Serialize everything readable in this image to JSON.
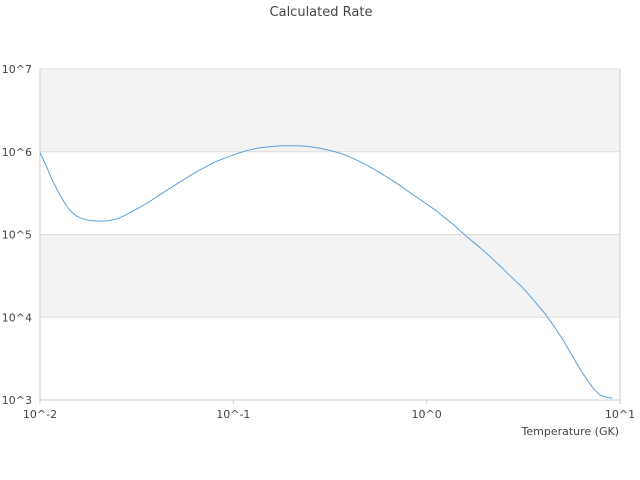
{
  "chart_data": {
    "type": "line",
    "title": "Calculated Rate",
    "xlabel": "Temperature (GK)",
    "ylabel": "",
    "x_scale": "log",
    "y_scale": "log",
    "xlim": [
      0.01,
      10
    ],
    "ylim": [
      1000,
      10000000
    ],
    "x_ticks": [
      {
        "value": 0.01,
        "label": "10^-2"
      },
      {
        "value": 0.1,
        "label": "10^-1"
      },
      {
        "value": 1,
        "label": "10^0"
      },
      {
        "value": 10,
        "label": "10^1"
      }
    ],
    "y_ticks": [
      {
        "value": 1000,
        "label": "10^3"
      },
      {
        "value": 10000,
        "label": "10^4"
      },
      {
        "value": 100000,
        "label": "10^5"
      },
      {
        "value": 1000000,
        "label": "10^6"
      },
      {
        "value": 10000000,
        "label": "10^7"
      }
    ],
    "grid": "alternating horizontal bands",
    "legend": "none",
    "colors": {
      "line": "#5aa0dc",
      "band": "#f3f3f3",
      "gridline": "#dddddd",
      "axis": "#cccccc"
    },
    "series": [
      {
        "x": [
          0.01,
          0.0107,
          0.0115,
          0.0124,
          0.0133,
          0.0143,
          0.0154,
          0.0166,
          0.0178,
          0.0191,
          0.0206,
          0.0221,
          0.0237,
          0.0255,
          0.0274,
          0.0295,
          0.0317,
          0.0341,
          0.0367,
          0.0394,
          0.0424,
          0.0456,
          0.049,
          0.0527,
          0.0567,
          0.0609,
          0.0655,
          0.0704,
          0.0757,
          0.0814,
          0.0876,
          0.0942,
          0.101,
          0.109,
          0.117,
          0.126,
          0.135,
          0.146,
          0.156,
          0.168,
          0.181,
          0.194,
          0.209,
          0.225,
          0.242,
          0.26,
          0.28,
          0.3,
          0.323,
          0.347,
          0.374,
          0.402,
          0.432,
          0.464,
          0.499,
          0.537,
          0.578,
          0.621,
          0.668,
          0.718,
          0.772,
          0.83,
          0.893,
          0.96,
          1.03,
          1.11,
          1.19,
          1.28,
          1.38,
          1.48,
          1.6,
          1.72,
          1.84,
          1.98,
          2.13,
          2.29,
          2.47,
          2.65,
          2.85,
          3.07,
          3.3,
          3.55,
          3.81,
          4.1,
          4.41,
          4.74,
          5.1,
          5.48,
          5.9,
          6.34,
          6.82,
          7.33,
          7.88,
          8.48,
          9.12
        ],
        "y": [
          980000,
          700000,
          470000,
          330000,
          250000,
          195000,
          168000,
          155000,
          149000,
          146000,
          145000,
          146000,
          150000,
          157000,
          170000,
          186000,
          204000,
          224000,
          248000,
          278000,
          310000,
          346000,
          385000,
          428000,
          475000,
          528000,
          584000,
          640000,
          700000,
          760000,
          815000,
          870000,
          925000,
          980000,
          1030000,
          1075000,
          1110000,
          1135000,
          1155000,
          1170000,
          1180000,
          1183000,
          1181000,
          1175000,
          1160000,
          1135000,
          1100000,
          1065000,
          1025000,
          980000,
          920000,
          860000,
          800000,
          735000,
          670000,
          612000,
          552000,
          495000,
          445000,
          400000,
          355000,
          315000,
          280000,
          250000,
          222000,
          197000,
          172000,
          151000,
          131000,
          112000,
          96000,
          83000,
          73000,
          63000,
          54000,
          46000,
          39000,
          33000,
          28000,
          24000,
          20000,
          16500,
          13500,
          11000,
          8700,
          6800,
          5200,
          3900,
          2900,
          2200,
          1700,
          1350,
          1150,
          1080,
          1050
        ]
      }
    ]
  }
}
